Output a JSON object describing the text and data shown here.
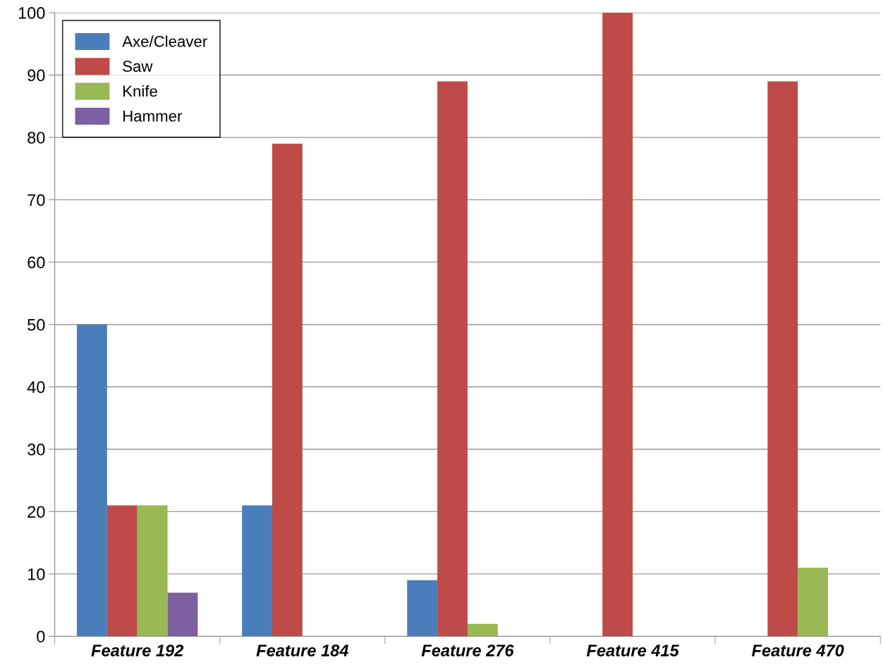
{
  "chart_data": {
    "type": "bar",
    "categories": [
      "Feature 192",
      "Feature 184",
      "Feature 276",
      "Feature 415",
      "Feature 470"
    ],
    "series": [
      {
        "name": "Axe/Cleaver",
        "color": "#4a7ebb",
        "values": [
          50,
          21,
          9,
          0,
          0
        ]
      },
      {
        "name": "Saw",
        "color": "#be4b48",
        "values": [
          21,
          79,
          89,
          100,
          89
        ]
      },
      {
        "name": "Knife",
        "color": "#98b954",
        "values": [
          21,
          0,
          2,
          0,
          11
        ]
      },
      {
        "name": "Hammer",
        "color": "#7d60a0",
        "values": [
          7,
          0,
          0,
          0,
          0
        ]
      }
    ],
    "ylim": [
      0,
      100
    ],
    "yticks": [
      0,
      10,
      20,
      30,
      40,
      50,
      60,
      70,
      80,
      90,
      100
    ],
    "grid": "y",
    "legend": "top left"
  }
}
